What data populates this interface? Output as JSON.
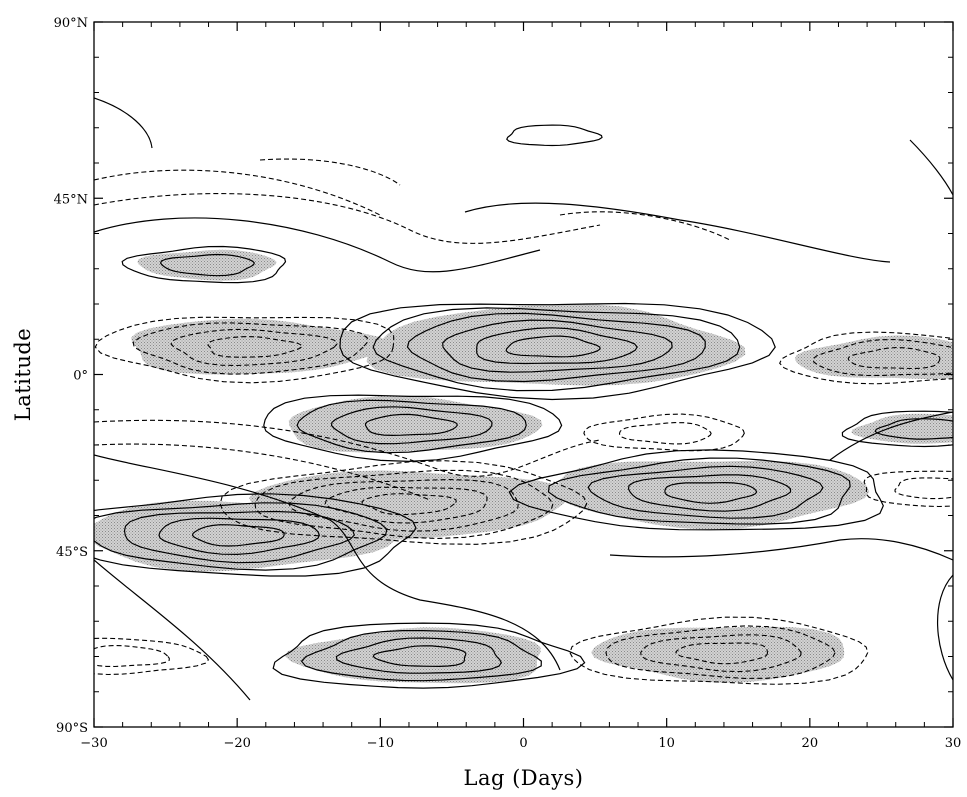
{
  "chart_data": {
    "type": "contour",
    "xlabel": "Lag (Days)",
    "ylabel": "Latitude",
    "xlim": [
      -30,
      30
    ],
    "ylim": [
      -90,
      90
    ],
    "x_ticks": [
      {
        "value": -30,
        "label": "−30"
      },
      {
        "value": -20,
        "label": "−20"
      },
      {
        "value": -10,
        "label": "−10"
      },
      {
        "value": 0,
        "label": "0"
      },
      {
        "value": 10,
        "label": "10"
      },
      {
        "value": 20,
        "label": "20"
      },
      {
        "value": 30,
        "label": "30"
      }
    ],
    "y_ticks": [
      {
        "value": 90,
        "label": "90°N"
      },
      {
        "value": 45,
        "label": "45°N"
      },
      {
        "value": 0,
        "label": "0°"
      },
      {
        "value": -45,
        "label": "45°S"
      },
      {
        "value": -90,
        "label": "90°S"
      }
    ],
    "contour_style": "solid = positive, dashed = negative, stippled shading = significant regions",
    "centers": [
      {
        "lag": 2,
        "lat": 7,
        "sign": "positive",
        "levels": 6,
        "shaded": true
      },
      {
        "lag": -8,
        "lat": -13,
        "sign": "positive",
        "levels": 4,
        "shaded": true
      },
      {
        "lag": -20,
        "lat": -41,
        "sign": "positive",
        "levels": 5,
        "shaded": true
      },
      {
        "lag": 13,
        "lat": -30,
        "sign": "positive",
        "levels": 5,
        "shaded": true
      },
      {
        "lag": -22,
        "lat": 28,
        "sign": "positive",
        "levels": 2,
        "shaded": true
      },
      {
        "lag": -7,
        "lat": -72,
        "sign": "positive",
        "levels": 4,
        "shaded": true
      },
      {
        "lag": 28,
        "lat": -14,
        "sign": "positive",
        "levels": 2,
        "shaded": true
      },
      {
        "lag": 2,
        "lat": 61,
        "sign": "positive",
        "levels": 1,
        "shaded": false
      },
      {
        "lag": -19,
        "lat": 7,
        "sign": "negative",
        "levels": 4,
        "shaded": true
      },
      {
        "lag": -8,
        "lat": -33,
        "sign": "negative",
        "levels": 5,
        "shaded": true
      },
      {
        "lag": 14,
        "lat": -71,
        "sign": "negative",
        "levels": 4,
        "shaded": true
      },
      {
        "lag": 10,
        "lat": -15,
        "sign": "negative",
        "levels": 2,
        "shaded": false
      },
      {
        "lag": 26,
        "lat": 4,
        "sign": "negative",
        "levels": 3,
        "shaded": true
      },
      {
        "lag": -28,
        "lat": -72,
        "sign": "negative",
        "levels": 2,
        "shaded": false
      },
      {
        "lag": 29,
        "lat": -29,
        "sign": "negative",
        "levels": 2,
        "shaded": false
      }
    ]
  }
}
